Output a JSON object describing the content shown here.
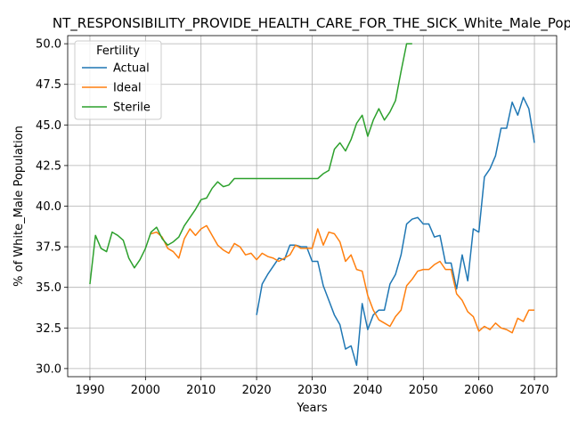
{
  "chart_data": {
    "type": "line",
    "title": "NT_RESPONSIBILITY_PROVIDE_HEALTH_CARE_FOR_THE_SICK_White_Male_Pop",
    "xlabel": "Years",
    "ylabel": "% of White_Male Population",
    "xlim": [
      1986,
      2074
    ],
    "ylim": [
      29.5,
      50.5
    ],
    "xticks": [
      1990,
      2000,
      2010,
      2020,
      2030,
      2040,
      2050,
      2060,
      2070
    ],
    "yticks": [
      30.0,
      32.5,
      35.0,
      37.5,
      40.0,
      42.5,
      45.0,
      47.5,
      50.0
    ],
    "ytick_labels": [
      "30.0",
      "32.5",
      "35.0",
      "37.5",
      "40.0",
      "42.5",
      "45.0",
      "47.5",
      "50.0"
    ],
    "grid": true,
    "legend": {
      "title": "Fertility",
      "placement": "upper-left"
    },
    "series": [
      {
        "name": "Actual",
        "color": "#1f77b4",
        "x": [
          2020,
          2021,
          2022,
          2023,
          2024,
          2025,
          2026,
          2027,
          2028,
          2029,
          2030,
          2031,
          2032,
          2033,
          2034,
          2035,
          2036,
          2037,
          2038,
          2039,
          2040,
          2041,
          2042,
          2043,
          2044,
          2045,
          2046,
          2047,
          2048,
          2049,
          2050,
          2051,
          2052,
          2053,
          2054,
          2055,
          2056,
          2057,
          2058,
          2059,
          2060,
          2061,
          2062,
          2063,
          2064,
          2065,
          2066,
          2067,
          2068,
          2069,
          2070
        ],
        "y": [
          33.3,
          35.2,
          35.8,
          36.3,
          36.8,
          36.7,
          37.6,
          37.6,
          37.5,
          37.5,
          36.6,
          36.6,
          35.1,
          34.2,
          33.3,
          32.7,
          31.2,
          31.4,
          30.2,
          34.0,
          32.4,
          33.3,
          33.6,
          33.6,
          35.2,
          35.8,
          37.0,
          38.9,
          39.2,
          39.3,
          38.9,
          38.9,
          38.1,
          38.2,
          36.5,
          36.5,
          34.9,
          37.0,
          35.4,
          38.6,
          38.4,
          41.8,
          42.3,
          43.1,
          44.8,
          44.8,
          46.4,
          45.6,
          46.7,
          46.0,
          43.9
        ]
      },
      {
        "name": "Ideal",
        "color": "#ff7f0e",
        "x": [
          2001,
          2002,
          2003,
          2004,
          2005,
          2006,
          2007,
          2008,
          2009,
          2010,
          2011,
          2012,
          2013,
          2014,
          2015,
          2016,
          2017,
          2018,
          2019,
          2020,
          2021,
          2022,
          2023,
          2024,
          2025,
          2026,
          2027,
          2028,
          2029,
          2030,
          2031,
          2032,
          2033,
          2034,
          2035,
          2036,
          2037,
          2038,
          2039,
          2040,
          2041,
          2042,
          2043,
          2044,
          2045,
          2046,
          2047,
          2048,
          2049,
          2050,
          2051,
          2052,
          2053,
          2054,
          2055,
          2056,
          2057,
          2058,
          2059,
          2060,
          2061,
          2062,
          2063,
          2064,
          2065,
          2066,
          2067,
          2068,
          2069,
          2070
        ],
        "y": [
          38.3,
          38.4,
          38.1,
          37.4,
          37.2,
          36.8,
          38.0,
          38.6,
          38.2,
          38.6,
          38.8,
          38.2,
          37.6,
          37.3,
          37.1,
          37.7,
          37.5,
          37.0,
          37.1,
          36.7,
          37.1,
          36.9,
          36.8,
          36.6,
          36.8,
          37.0,
          37.6,
          37.4,
          37.4,
          37.4,
          38.6,
          37.6,
          38.4,
          38.3,
          37.8,
          36.6,
          37.0,
          36.1,
          36.0,
          34.5,
          33.6,
          33.0,
          32.8,
          32.6,
          33.2,
          33.6,
          35.1,
          35.5,
          36.0,
          36.1,
          36.1,
          36.4,
          36.6,
          36.1,
          36.1,
          34.6,
          34.2,
          33.5,
          33.2,
          32.3,
          32.6,
          32.4,
          32.8,
          32.5,
          32.4,
          32.2,
          33.1,
          32.9,
          33.6,
          33.6
        ]
      },
      {
        "name": "Sterile",
        "color": "#2ca02c",
        "x": [
          1990,
          1991,
          1992,
          1993,
          1994,
          1995,
          1996,
          1997,
          1998,
          1999,
          2000,
          2001,
          2002,
          2003,
          2004,
          2005,
          2006,
          2007,
          2008,
          2009,
          2010,
          2011,
          2012,
          2013,
          2014,
          2015,
          2016,
          2017,
          2018,
          2019,
          2020,
          2021,
          2022,
          2023,
          2024,
          2025,
          2026,
          2027,
          2028,
          2029,
          2030,
          2031,
          2032,
          2033,
          2034,
          2035,
          2036,
          2037,
          2038,
          2039,
          2040,
          2041,
          2042,
          2043,
          2044,
          2045,
          2046,
          2047,
          2048
        ],
        "y": [
          35.2,
          38.2,
          37.4,
          37.2,
          38.4,
          38.2,
          37.9,
          36.8,
          36.2,
          36.7,
          37.4,
          38.4,
          38.7,
          38.0,
          37.6,
          37.8,
          38.1,
          38.8,
          39.3,
          39.8,
          40.4,
          40.5,
          41.1,
          41.5,
          41.2,
          41.3,
          41.7,
          41.7,
          41.7,
          41.7,
          41.7,
          41.7,
          41.7,
          41.7,
          41.7,
          41.7,
          41.7,
          41.7,
          41.7,
          41.7,
          41.7,
          41.7,
          42.0,
          42.2,
          43.5,
          43.9,
          43.4,
          44.1,
          45.1,
          45.6,
          44.3,
          45.3,
          46.0,
          45.3,
          45.8,
          46.5,
          48.3,
          50.0,
          50.0
        ]
      }
    ]
  }
}
